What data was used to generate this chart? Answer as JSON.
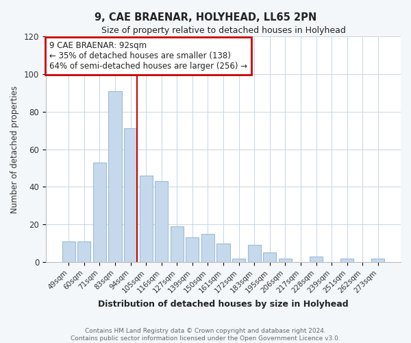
{
  "title": "9, CAE BRAENAR, HOLYHEAD, LL65 2PN",
  "subtitle": "Size of property relative to detached houses in Holyhead",
  "xlabel": "Distribution of detached houses by size in Holyhead",
  "ylabel": "Number of detached properties",
  "bar_labels": [
    "49sqm",
    "60sqm",
    "71sqm",
    "83sqm",
    "94sqm",
    "105sqm",
    "116sqm",
    "127sqm",
    "139sqm",
    "150sqm",
    "161sqm",
    "172sqm",
    "183sqm",
    "195sqm",
    "206sqm",
    "217sqm",
    "228sqm",
    "239sqm",
    "251sqm",
    "262sqm",
    "273sqm"
  ],
  "bar_values": [
    11,
    11,
    53,
    91,
    71,
    46,
    43,
    19,
    13,
    15,
    10,
    2,
    9,
    5,
    2,
    0,
    3,
    0,
    2,
    0,
    2
  ],
  "bar_color": "#c6d9ec",
  "bar_edge_color": "#9bbbd4",
  "highlight_index": 4,
  "highlight_line_color": "#cc0000",
  "annotation_box_color": "#ffffff",
  "annotation_border_color": "#cc0000",
  "annotation_line1": "9 CAE BRAENAR: 92sqm",
  "annotation_line2": "← 35% of detached houses are smaller (138)",
  "annotation_line3": "64% of semi-detached houses are larger (256) →",
  "ylim": [
    0,
    120
  ],
  "yticks": [
    0,
    20,
    40,
    60,
    80,
    100,
    120
  ],
  "footer_line1": "Contains HM Land Registry data © Crown copyright and database right 2024.",
  "footer_line2": "Contains public sector information licensed under the Open Government Licence v3.0.",
  "bg_color": "#f4f7fa",
  "plot_bg_color": "#ffffff"
}
